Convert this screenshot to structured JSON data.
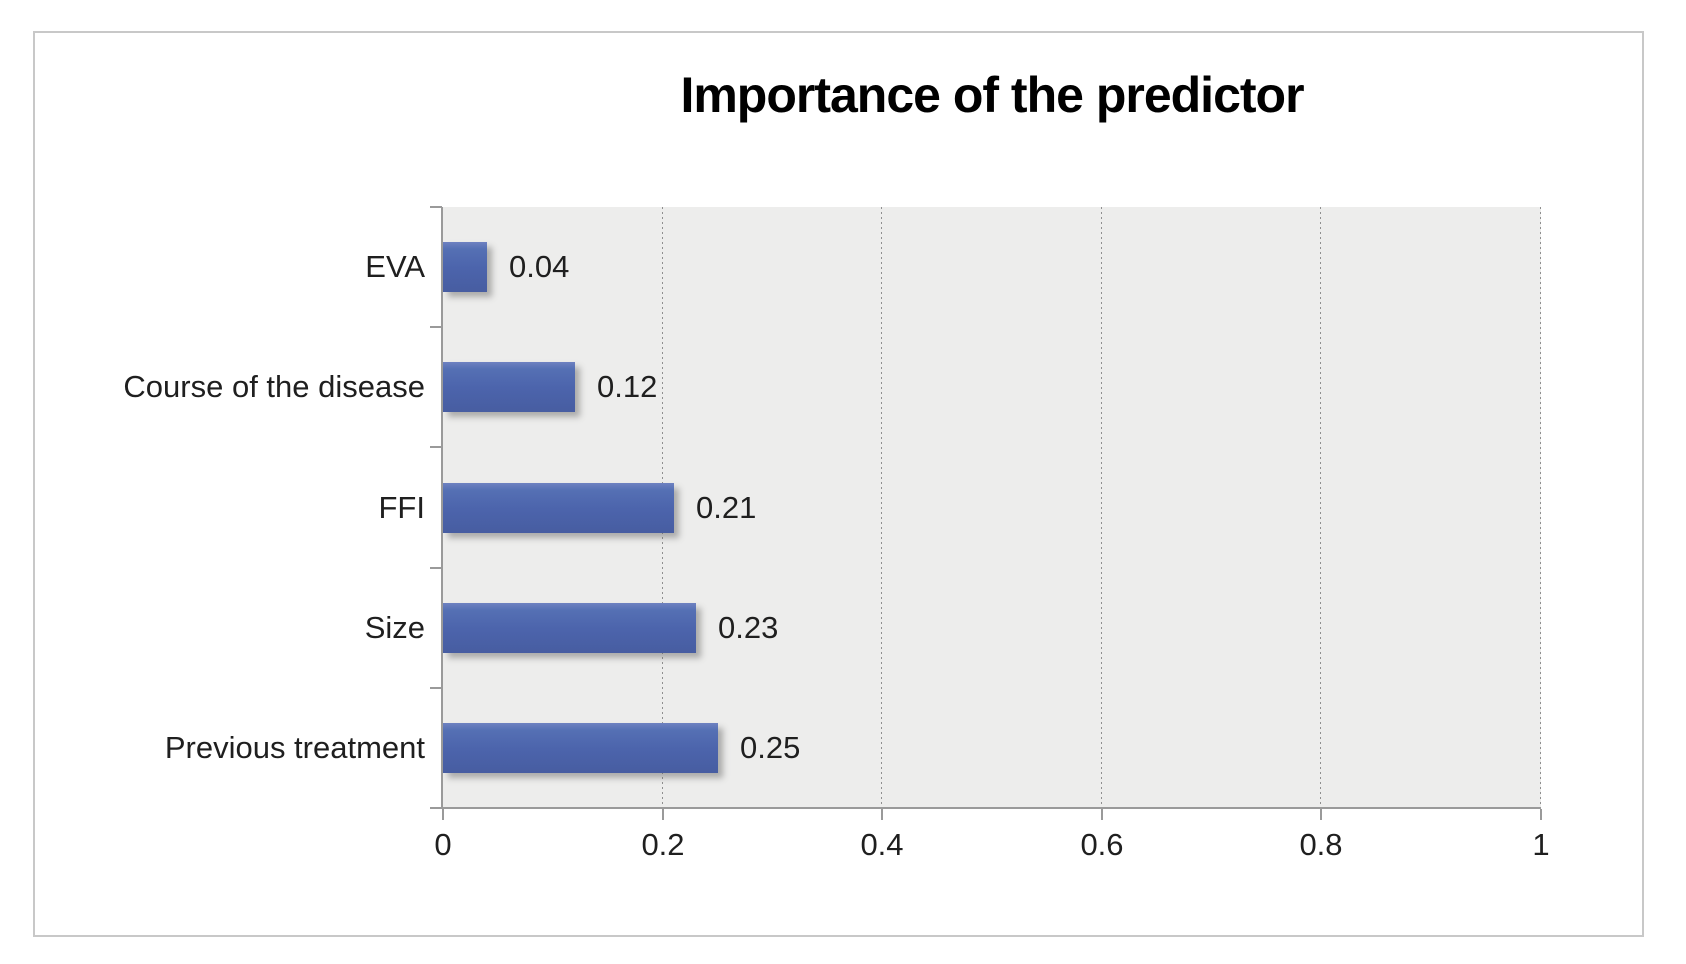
{
  "window": {
    "background": "#ffffff",
    "chart_border_color": "#c8c8c8"
  },
  "chart_data": {
    "type": "bar",
    "orientation": "horizontal",
    "title": "Importance of the predictor",
    "categories": [
      "EVA",
      "Course of the disease",
      "FFI",
      "Size",
      "Previous treatment"
    ],
    "values": [
      0.04,
      0.12,
      0.21,
      0.23,
      0.25
    ],
    "data_labels": [
      "0.04",
      "0.12",
      "0.21",
      "0.23",
      "0.25"
    ],
    "xlabel": "",
    "ylabel": "",
    "xlim": [
      0,
      1
    ],
    "x_ticks": [
      {
        "value": 0,
        "label": "0"
      },
      {
        "value": 0.2,
        "label": "0.2"
      },
      {
        "value": 0.4,
        "label": "0.4"
      },
      {
        "value": 0.6,
        "label": "0.6"
      },
      {
        "value": 0.8,
        "label": "0.8"
      },
      {
        "value": 1,
        "label": "1"
      }
    ],
    "grid": {
      "vertical": true,
      "horizontal": false,
      "style": "dotted"
    },
    "legend": "none",
    "colors": {
      "bar_top": "#6e81c1",
      "bar_mid": "#4c64ac",
      "bar_bottom": "#475da1",
      "plot_background": "#ededec",
      "gridline": "#8f8f8f",
      "axis": "#9a9a9a",
      "text": "#1f1f1f",
      "title_text": "#000000",
      "chart_border": "#c8c8c8"
    }
  }
}
